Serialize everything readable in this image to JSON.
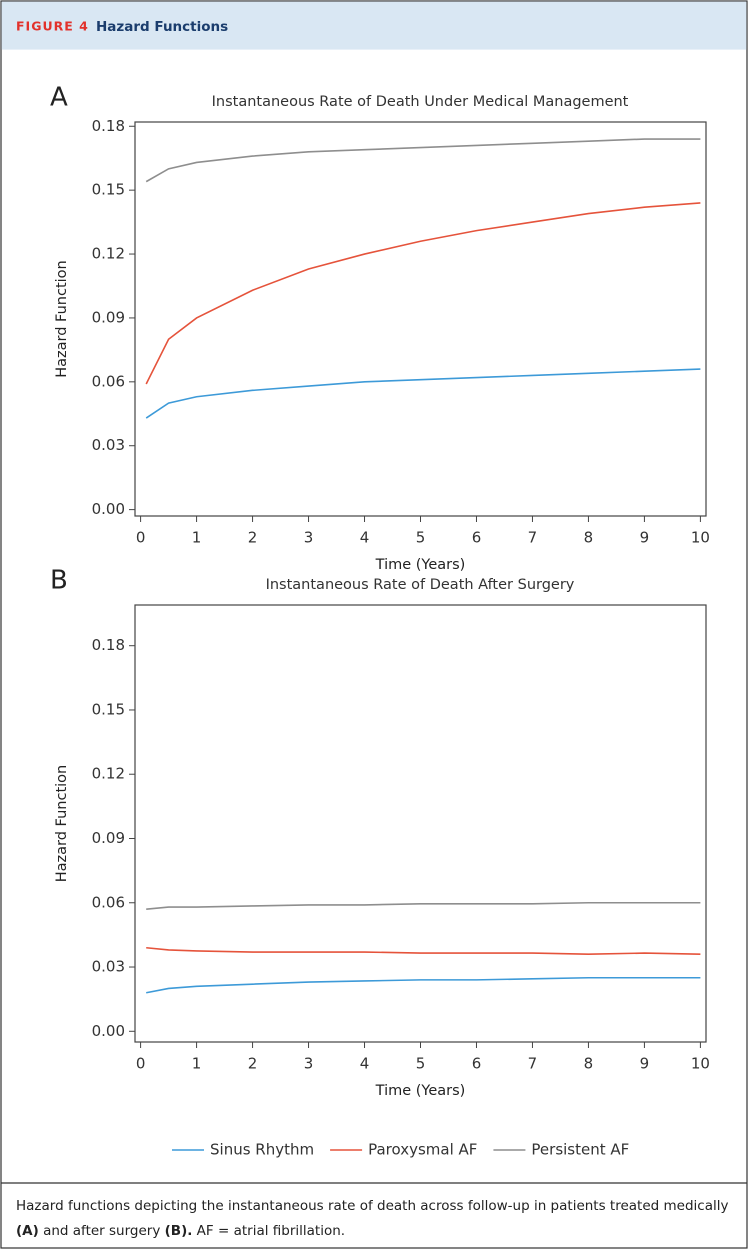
{
  "header": {
    "figure_label": "FIGURE 4",
    "title": "Hazard Functions"
  },
  "chart_data": [
    {
      "type": "line",
      "panel_label": "A",
      "title": "Instantaneous Rate of Death Under Medical Management",
      "x_label": "Time (Years)",
      "y_label": "Hazard Function",
      "x": [
        0.1,
        0.5,
        1,
        2,
        3,
        4,
        5,
        6,
        7,
        8,
        9,
        10
      ],
      "series": [
        {
          "color": "#3d9ad8",
          "values": [
            0.043,
            0.05,
            0.053,
            0.056,
            0.058,
            0.06,
            0.061,
            0.062,
            0.063,
            0.064,
            0.065,
            0.066
          ]
        },
        {
          "color": "#e5533b",
          "values": [
            0.059,
            0.08,
            0.09,
            0.103,
            0.113,
            0.12,
            0.126,
            0.131,
            0.135,
            0.139,
            0.142,
            0.144
          ]
        },
        {
          "color": "#8e8e8e",
          "values": [
            0.154,
            0.16,
            0.163,
            0.166,
            0.168,
            0.169,
            0.17,
            0.171,
            0.172,
            0.173,
            0.174,
            0.174
          ]
        }
      ],
      "xlim": [
        -0.1,
        10.1
      ],
      "xticks": [
        0,
        1,
        2,
        3,
        4,
        5,
        6,
        7,
        8,
        9,
        10
      ],
      "ylim": [
        -0.003,
        0.182
      ],
      "yticks": [
        {
          "value": 0,
          "label": "0.00"
        },
        0.03,
        0.06,
        0.09,
        0.12,
        0.15,
        0.18
      ]
    },
    {
      "type": "line",
      "panel_label": "B",
      "title": "Instantaneous Rate of Death After Surgery",
      "x_label": "Time (Years)",
      "y_label": "Hazard Function",
      "x": [
        0.1,
        0.5,
        1,
        2,
        3,
        4,
        5,
        6,
        7,
        8,
        9,
        10
      ],
      "series": [
        {
          "name": "Sinus Rhythm",
          "color": "#3d9ad8",
          "values": [
            0.018,
            0.02,
            0.021,
            0.022,
            0.023,
            0.0235,
            0.024,
            0.024,
            0.0245,
            0.025,
            0.025,
            0.025
          ]
        },
        {
          "name": "Paroxysmal AF",
          "color": "#e5533b",
          "values": [
            0.039,
            0.038,
            0.0375,
            0.037,
            0.037,
            0.037,
            0.0365,
            0.0365,
            0.0365,
            0.036,
            0.0365,
            0.036
          ]
        },
        {
          "name": "Persistent AF",
          "color": "#8e8e8e",
          "values": [
            0.057,
            0.058,
            0.058,
            0.0585,
            0.059,
            0.059,
            0.0595,
            0.0595,
            0.0595,
            0.06,
            0.06,
            0.06
          ]
        }
      ],
      "xlim": [
        -0.1,
        10.1
      ],
      "xticks": [
        0,
        1,
        2,
        3,
        4,
        5,
        6,
        7,
        8,
        9,
        10
      ],
      "ylim": [
        -0.005,
        0.199
      ],
      "yticks": [
        {
          "value": 0,
          "label": "0.00"
        },
        0.03,
        0.06,
        0.09,
        0.12,
        0.15,
        0.18
      ]
    }
  ],
  "caption": [
    "Hazard functions depicting the instantaneous rate of death across follow-up in patients treated medically ",
    "(A)",
    " and after surgery ",
    "(B).",
    " AF = atrial fibrillation."
  ]
}
